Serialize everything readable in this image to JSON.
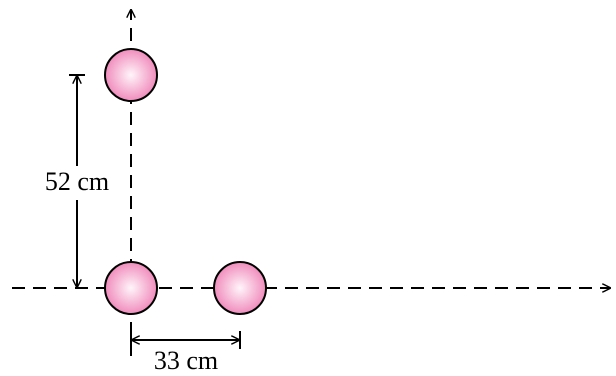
{
  "dimensions": [
    {
      "label": "52 cm"
    },
    {
      "label": "33 cm"
    }
  ]
}
